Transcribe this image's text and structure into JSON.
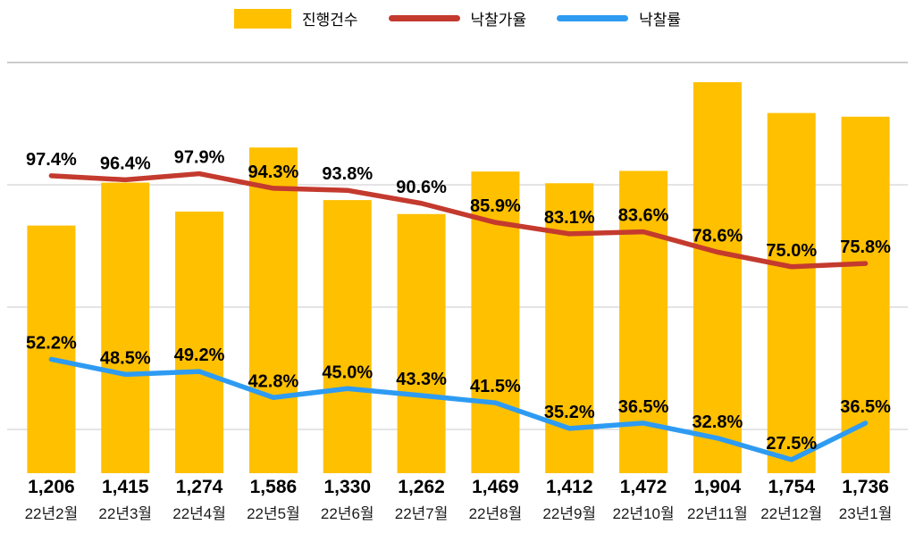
{
  "colors": {
    "bar": "#ffc000",
    "price_rate_line": "#c43a2e",
    "sale_rate_line": "#2e9bf2",
    "gridline": "#c9c9c9"
  },
  "chart_data": {
    "type": "bar",
    "combo": true,
    "title": "",
    "xlabel": "",
    "ylabel": "",
    "legend_position": "top",
    "grid": "horizontal",
    "bar_axis_max": 2000,
    "line_unit": "%",
    "categories": [
      "22년2월",
      "22년3월",
      "22년4월",
      "22년5월",
      "22년6월",
      "22년7월",
      "22년8월",
      "22년9월",
      "22년10월",
      "22년11월",
      "22년12월",
      "23년1월"
    ],
    "series": [
      {
        "name": "진행건수",
        "key": "case-count",
        "type": "bar",
        "color": "#ffc000",
        "values": [
          1206,
          1415,
          1274,
          1586,
          1330,
          1262,
          1469,
          1412,
          1472,
          1904,
          1754,
          1736
        ]
      },
      {
        "name": "낙찰가율",
        "key": "winning-bid-price-rate",
        "type": "line",
        "color": "#c43a2e",
        "unit": "%",
        "values": [
          97.4,
          96.4,
          97.9,
          94.3,
          93.8,
          90.6,
          85.9,
          83.1,
          83.6,
          78.6,
          75.0,
          75.8
        ]
      },
      {
        "name": "낙찰률",
        "key": "winning-bid-rate",
        "type": "line",
        "color": "#2e9bf2",
        "unit": "%",
        "values": [
          52.2,
          48.5,
          49.2,
          42.8,
          45.0,
          43.3,
          41.5,
          35.2,
          36.5,
          32.8,
          27.5,
          36.5
        ]
      }
    ]
  }
}
